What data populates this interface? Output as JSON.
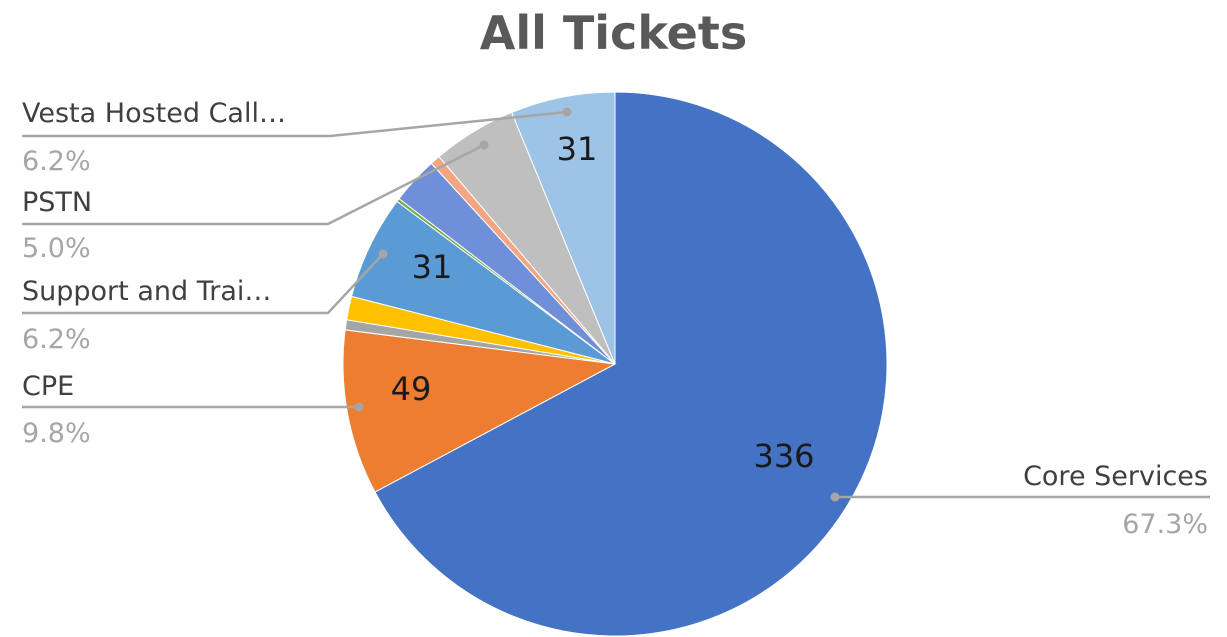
{
  "chart_data": {
    "type": "pie",
    "title": "All Tickets",
    "slices": [
      {
        "label": "Core Services",
        "value": 336,
        "percent_label": "67.3%",
        "value_label": "336",
        "color": "#4472c4",
        "show_label": true
      },
      {
        "label": "CPE",
        "value": 49,
        "percent_label": "9.8%",
        "value_label": "49",
        "color": "#ed7d31",
        "show_label": true
      },
      {
        "value": 3,
        "color": "#a5a5a5",
        "show_label": false
      },
      {
        "value": 7,
        "color": "#ffc000",
        "show_label": false
      },
      {
        "label": "Support and Trai…",
        "value": 31,
        "percent_label": "6.2%",
        "value_label": "31",
        "color": "#5b9bd5",
        "show_label": true
      },
      {
        "value": 1,
        "color": "#70ad47",
        "show_label": false
      },
      {
        "value": 14,
        "color": "#6f8fd8",
        "show_label": false
      },
      {
        "value": 3,
        "color": "#f4a582",
        "show_label": false
      },
      {
        "label": "PSTN",
        "value": 25,
        "percent_label": "5.0%",
        "value_label": "",
        "color": "#bfbfbf",
        "show_label": true
      },
      {
        "label": "Vesta Hosted Call…",
        "value": 31,
        "percent_label": "6.2%",
        "value_label": "31",
        "color": "#9dc3e6",
        "show_label": true
      }
    ]
  }
}
